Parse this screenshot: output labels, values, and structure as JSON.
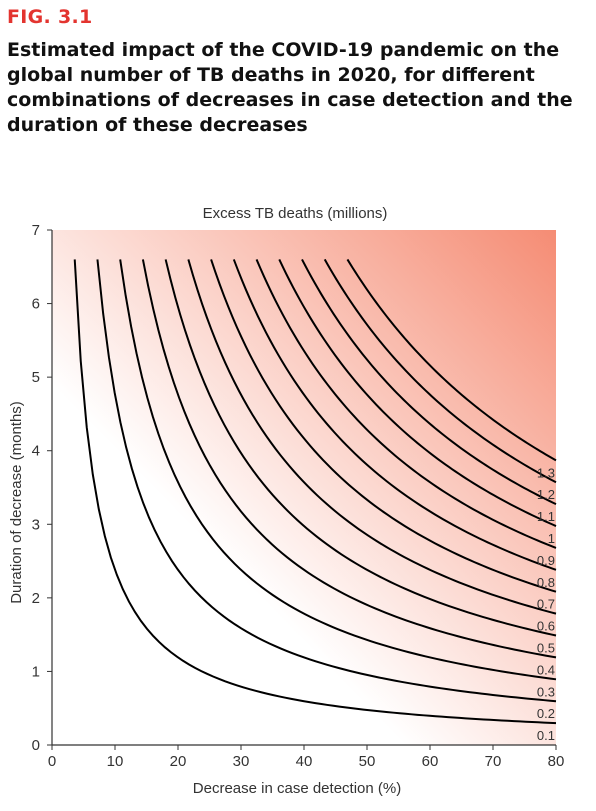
{
  "figure": {
    "label": "FIG. 3.1",
    "title": "Estimated impact of the COVID-19 pandemic on the global number of TB deaths in 2020, for different combinations of decreases in case detection and the duration of these decreases"
  },
  "colors": {
    "fig_label": "#e3342f",
    "gradient_low": "#ffffff",
    "gradient_high": "#f58c74",
    "contour_line": "#000000"
  },
  "chart_data": {
    "type": "contour",
    "title": "Excess TB deaths (millions)",
    "xlabel": "Decrease in case detection (%)",
    "ylabel": "Duration of decrease (months)",
    "xlim": [
      0,
      80
    ],
    "ylim": [
      0,
      7
    ],
    "x_ticks": [
      "0",
      "10",
      "20",
      "30",
      "40",
      "50",
      "60",
      "70",
      "80"
    ],
    "y_ticks": [
      "0",
      "1",
      "2",
      "3",
      "4",
      "5",
      "6",
      "7"
    ],
    "grid": false,
    "y_max_duration": 6.6,
    "contour_relation": "excess_deaths_millions ≈ 0.0042 × decrease_percent × duration_months",
    "contours": [
      {
        "level": 0.1,
        "label": "0.1"
      },
      {
        "level": 0.2,
        "label": "0.2"
      },
      {
        "level": 0.3,
        "label": "0.3"
      },
      {
        "level": 0.4,
        "label": "0.4"
      },
      {
        "level": 0.5,
        "label": "0.5"
      },
      {
        "level": 0.6,
        "label": "0.6"
      },
      {
        "level": 0.7,
        "label": "0.7"
      },
      {
        "level": 0.8,
        "label": "0.8"
      },
      {
        "level": 0.9,
        "label": "0.9"
      },
      {
        "level": 1.0,
        "label": "1"
      },
      {
        "level": 1.1,
        "label": "1.1"
      },
      {
        "level": 1.2,
        "label": "1.2"
      },
      {
        "level": 1.3,
        "label": "1.3"
      }
    ]
  }
}
